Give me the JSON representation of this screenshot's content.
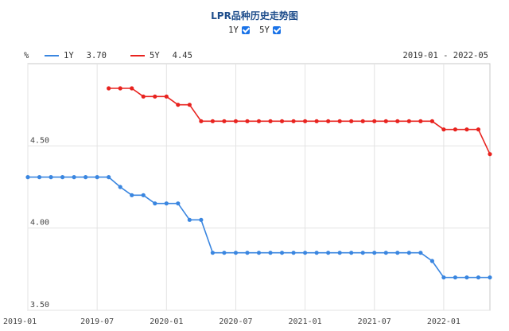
{
  "title": "LPR品种历史走势图",
  "toggles": [
    {
      "label": "1Y",
      "checked": true
    },
    {
      "label": "5Y",
      "checked": true
    }
  ],
  "legend": {
    "unit": "%",
    "items": [
      {
        "name": "1Y",
        "value": "3.70",
        "color": "#3a86e0"
      },
      {
        "name": "5Y",
        "value": "4.45",
        "color": "#e8231f"
      }
    ],
    "range": "2019-01 - 2022-05"
  },
  "chart_data": {
    "type": "line",
    "title": "LPR品种历史走势图",
    "xlabel": "",
    "ylabel": "%",
    "x_range": [
      "2019-01",
      "2022-05"
    ],
    "ylim": [
      3.5,
      5.0
    ],
    "y_ticks": [
      "4.50",
      "4.00",
      "3.50"
    ],
    "x_ticks": [
      "2019-01",
      "2019-07",
      "2020-01",
      "2020-07",
      "2021-01",
      "2021-07",
      "2022-01"
    ],
    "grid": true,
    "series": [
      {
        "name": "1Y",
        "color": "#3a86e0",
        "points": [
          [
            "2019-01",
            4.31
          ],
          [
            "2019-02",
            4.31
          ],
          [
            "2019-03",
            4.31
          ],
          [
            "2019-04",
            4.31
          ],
          [
            "2019-05",
            4.31
          ],
          [
            "2019-06",
            4.31
          ],
          [
            "2019-07",
            4.31
          ],
          [
            "2019-08",
            4.31
          ],
          [
            "2019-09",
            4.25
          ],
          [
            "2019-10",
            4.2
          ],
          [
            "2019-11",
            4.2
          ],
          [
            "2019-12",
            4.15
          ],
          [
            "2020-01",
            4.15
          ],
          [
            "2020-02",
            4.15
          ],
          [
            "2020-03",
            4.05
          ],
          [
            "2020-04",
            4.05
          ],
          [
            "2020-05",
            3.85
          ],
          [
            "2020-06",
            3.85
          ],
          [
            "2020-07",
            3.85
          ],
          [
            "2020-08",
            3.85
          ],
          [
            "2020-09",
            3.85
          ],
          [
            "2020-10",
            3.85
          ],
          [
            "2020-11",
            3.85
          ],
          [
            "2020-12",
            3.85
          ],
          [
            "2021-01",
            3.85
          ],
          [
            "2021-02",
            3.85
          ],
          [
            "2021-03",
            3.85
          ],
          [
            "2021-04",
            3.85
          ],
          [
            "2021-05",
            3.85
          ],
          [
            "2021-06",
            3.85
          ],
          [
            "2021-07",
            3.85
          ],
          [
            "2021-08",
            3.85
          ],
          [
            "2021-09",
            3.85
          ],
          [
            "2021-10",
            3.85
          ],
          [
            "2021-11",
            3.85
          ],
          [
            "2021-12",
            3.8
          ],
          [
            "2022-01",
            3.7
          ],
          [
            "2022-02",
            3.7
          ],
          [
            "2022-03",
            3.7
          ],
          [
            "2022-04",
            3.7
          ],
          [
            "2022-05",
            3.7
          ]
        ]
      },
      {
        "name": "5Y",
        "color": "#e8231f",
        "points": [
          [
            "2019-08",
            4.85
          ],
          [
            "2019-09",
            4.85
          ],
          [
            "2019-10",
            4.85
          ],
          [
            "2019-11",
            4.8
          ],
          [
            "2019-12",
            4.8
          ],
          [
            "2020-01",
            4.8
          ],
          [
            "2020-02",
            4.75
          ],
          [
            "2020-03",
            4.75
          ],
          [
            "2020-04",
            4.65
          ],
          [
            "2020-05",
            4.65
          ],
          [
            "2020-06",
            4.65
          ],
          [
            "2020-07",
            4.65
          ],
          [
            "2020-08",
            4.65
          ],
          [
            "2020-09",
            4.65
          ],
          [
            "2020-10",
            4.65
          ],
          [
            "2020-11",
            4.65
          ],
          [
            "2020-12",
            4.65
          ],
          [
            "2021-01",
            4.65
          ],
          [
            "2021-02",
            4.65
          ],
          [
            "2021-03",
            4.65
          ],
          [
            "2021-04",
            4.65
          ],
          [
            "2021-05",
            4.65
          ],
          [
            "2021-06",
            4.65
          ],
          [
            "2021-07",
            4.65
          ],
          [
            "2021-08",
            4.65
          ],
          [
            "2021-09",
            4.65
          ],
          [
            "2021-10",
            4.65
          ],
          [
            "2021-11",
            4.65
          ],
          [
            "2021-12",
            4.65
          ],
          [
            "2022-01",
            4.6
          ],
          [
            "2022-02",
            4.6
          ],
          [
            "2022-03",
            4.6
          ],
          [
            "2022-04",
            4.6
          ],
          [
            "2022-05",
            4.45
          ]
        ]
      }
    ]
  }
}
